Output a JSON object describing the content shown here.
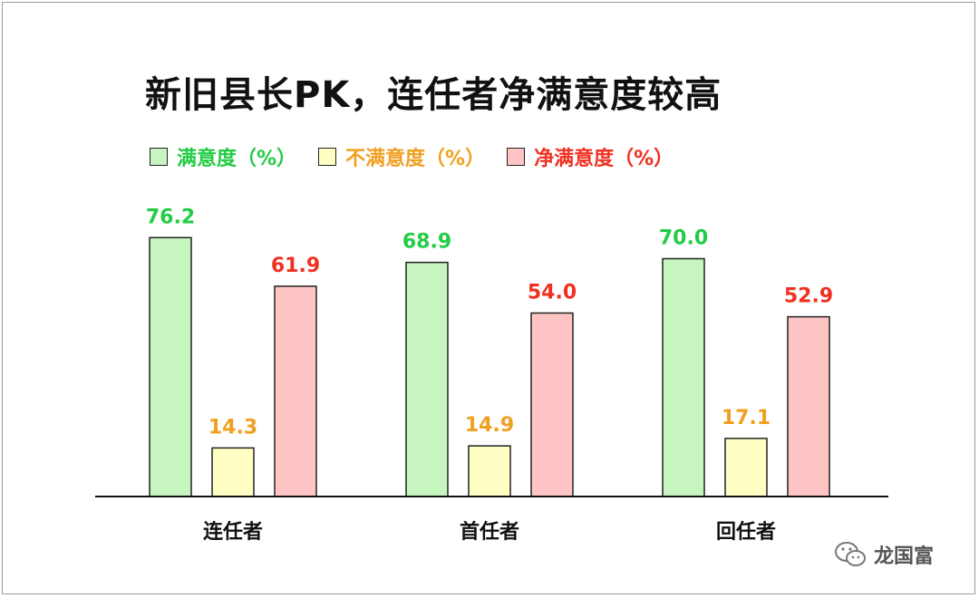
{
  "chart_data": {
    "type": "bar",
    "title": "新旧县长PK，连任者净满意度较高",
    "categories": [
      "连任者",
      "首任者",
      "回任者"
    ],
    "series": [
      {
        "name": "满意度（%）",
        "values": [
          76.2,
          68.9,
          70.0
        ],
        "labels": [
          "76.2",
          "68.9",
          "70.0"
        ],
        "color": "#c6f5c0",
        "label_color": "#22cc44"
      },
      {
        "name": "不满意度（%）",
        "values": [
          14.3,
          14.9,
          17.1
        ],
        "labels": [
          "14.3",
          "14.9",
          "17.1"
        ],
        "color": "#ffffc4",
        "label_color": "#f0a020"
      },
      {
        "name": "净满意度（%）",
        "values": [
          61.9,
          54.0,
          52.9
        ],
        "labels": [
          "61.9",
          "54.0",
          "52.9"
        ],
        "color": "#ffc4c4",
        "label_color": "#f03020"
      }
    ],
    "ylim": [
      0,
      80
    ],
    "legend_position": "top-left",
    "grid": false
  },
  "watermark": {
    "text": "龙国富",
    "icon": "wechat-icon"
  }
}
